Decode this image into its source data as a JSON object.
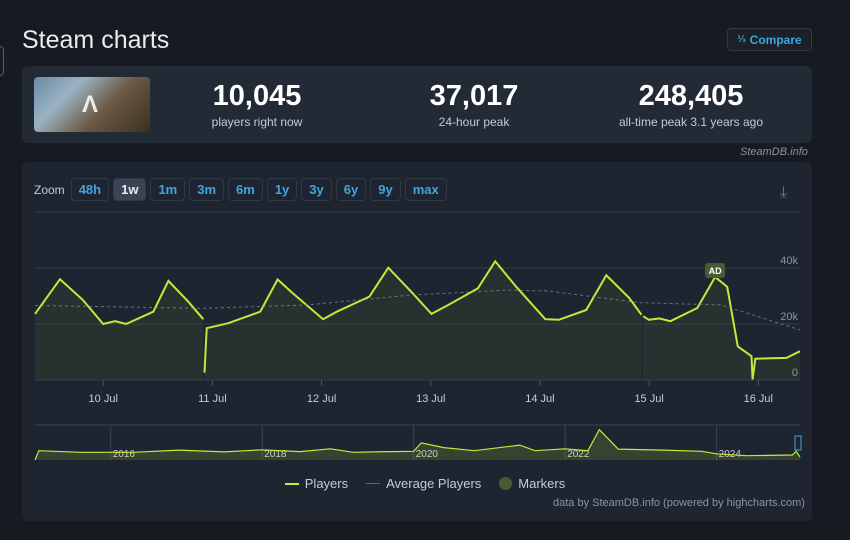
{
  "title": "Steam charts",
  "compare": {
    "icon": "compare-icon",
    "label": "Compare"
  },
  "stats": [
    {
      "value": "10,045",
      "label": "players right now"
    },
    {
      "value": "37,017",
      "label": "24-hour peak"
    },
    {
      "value": "248,405",
      "label": "all-time peak 3.1 years ago"
    }
  ],
  "game_logo_text": "ARK",
  "steamdb_credit": "SteamDB.info",
  "zoom": {
    "label": "Zoom",
    "options": [
      "48h",
      "1w",
      "1m",
      "3m",
      "6m",
      "1y",
      "3y",
      "6y",
      "9y",
      "max"
    ],
    "selected": "1w"
  },
  "download_icon": "download-icon",
  "chart_data": {
    "type": "line",
    "x_tick_labels": [
      "10 Jul",
      "11 Jul",
      "12 Jul",
      "13 Jul",
      "14 Jul",
      "15 Jul",
      "16 Jul"
    ],
    "y_tick_labels": [
      "0",
      "20k",
      "40k"
    ],
    "ylim": [
      0,
      60000
    ],
    "xlim": [
      "9 Jul 09:00",
      "16 Jul 09:10"
    ],
    "grid": true,
    "legend_placement": "bottom",
    "colors": {
      "players": "#c6e83a",
      "average": "#8a929c",
      "marker": "#4a5a32"
    },
    "series": [
      {
        "name": "Players",
        "points": [
          [
            "9 Jul 09:00",
            23600
          ],
          [
            "9 Jul 14:30",
            36000
          ],
          [
            "9 Jul 19:30",
            28600
          ],
          [
            "10 Jul 00:00",
            20000
          ],
          [
            "10 Jul 02:36",
            21000
          ],
          [
            "10 Jul 05:00",
            20000
          ],
          [
            "10 Jul 11:00",
            24400
          ],
          [
            "10 Jul 14:20",
            35400
          ],
          [
            "10 Jul 18:40",
            28000
          ],
          [
            "10 Jul 22:00",
            21700
          ],
          null,
          [
            "10 Jul 22:15",
            2600
          ],
          [
            "10 Jul 22:45",
            18500
          ],
          [
            "11 Jul 03:30",
            20300
          ],
          [
            "11 Jul 10:30",
            24400
          ],
          [
            "11 Jul 14:20",
            35900
          ],
          [
            "11 Jul 17:40",
            31000
          ],
          [
            "12 Jul 00:20",
            21700
          ],
          [
            "12 Jul 03:20",
            24400
          ],
          [
            "12 Jul 10:30",
            29800
          ],
          [
            "12 Jul 14:40",
            40100
          ],
          [
            "12 Jul 20:00",
            31000
          ],
          [
            "13 Jul 00:10",
            23600
          ],
          [
            "13 Jul 03:50",
            26800
          ],
          [
            "13 Jul 10:20",
            32700
          ],
          [
            "13 Jul 14:10",
            42400
          ],
          [
            "13 Jul 18:40",
            33500
          ],
          [
            "14 Jul 01:10",
            21700
          ],
          [
            "14 Jul 04:10",
            21500
          ],
          [
            "14 Jul 10:10",
            25000
          ],
          [
            "14 Jul 14:35",
            37400
          ],
          [
            "14 Jul 19:40",
            29200
          ],
          [
            "14 Jul 22:20",
            23300
          ],
          null,
          [
            "14 Jul 22:40",
            22800
          ],
          [
            "15 Jul 00:00",
            21500
          ],
          [
            "15 Jul 02:15",
            22000
          ],
          [
            "15 Jul 04:40",
            21000
          ],
          [
            "15 Jul 10:35",
            25700
          ],
          [
            "15 Jul 14:30",
            36800
          ],
          [
            "15 Jul 17:10",
            33300
          ],
          [
            "15 Jul 19:30",
            12000
          ],
          [
            "15 Jul 22:30",
            8500
          ],
          [
            "15 Jul 22:45",
            200
          ],
          [
            "15 Jul 23:20",
            7600
          ],
          [
            "16 Jul 06:10",
            7900
          ],
          [
            "16 Jul 09:10",
            10300
          ]
        ]
      },
      {
        "name": "Average Players",
        "points": [
          [
            "9 Jul 09:00",
            26600
          ],
          [
            "10 Jul 22:00",
            25600
          ],
          [
            "11 Jul 20:40",
            26800
          ],
          [
            "12 Jul 19:10",
            30300
          ],
          [
            "13 Jul 16:40",
            32100
          ],
          [
            "14 Jul 01:45",
            31800
          ],
          [
            "14 Jul 22:05",
            27600
          ],
          [
            "15 Jul 15:55",
            26800
          ],
          [
            "16 Jul 09:10",
            17900
          ]
        ]
      }
    ],
    "markers": [
      {
        "label": "AD",
        "x": "15 Jul 14:30"
      }
    ],
    "navigator": {
      "x_tick_labels": [
        "2016",
        "2018",
        "2020",
        "2022",
        "2024"
      ],
      "xlim": [
        2015.0,
        2025.1
      ],
      "points": [
        [
          2015.0,
          0
        ],
        [
          2015.05,
          30000
        ],
        [
          2015.6,
          25000
        ],
        [
          2016.3,
          25000
        ],
        [
          2016.9,
          32000
        ],
        [
          2017.5,
          26000
        ],
        [
          2018.0,
          33000
        ],
        [
          2018.5,
          27000
        ],
        [
          2018.9,
          36000
        ],
        [
          2019.2,
          25000
        ],
        [
          2019.7,
          27000
        ],
        [
          2020.0,
          28000
        ],
        [
          2020.1,
          55000
        ],
        [
          2020.4,
          40000
        ],
        [
          2020.8,
          30000
        ],
        [
          2021.4,
          48000
        ],
        [
          2021.6,
          30000
        ],
        [
          2022.0,
          36000
        ],
        [
          2022.3,
          30000
        ],
        [
          2022.45,
          98000
        ],
        [
          2022.7,
          35000
        ],
        [
          2023.3,
          32000
        ],
        [
          2023.8,
          28000
        ],
        [
          2024.0,
          20000
        ],
        [
          2024.4,
          14000
        ],
        [
          2025.0,
          16000
        ],
        [
          2025.05,
          28000
        ],
        [
          2025.1,
          10000
        ]
      ]
    }
  },
  "legend": [
    {
      "label": "Players"
    },
    {
      "label": "Average Players"
    },
    {
      "label": "Markers"
    }
  ],
  "credits": "data by SteamDB.info (powered by highcharts.com)"
}
